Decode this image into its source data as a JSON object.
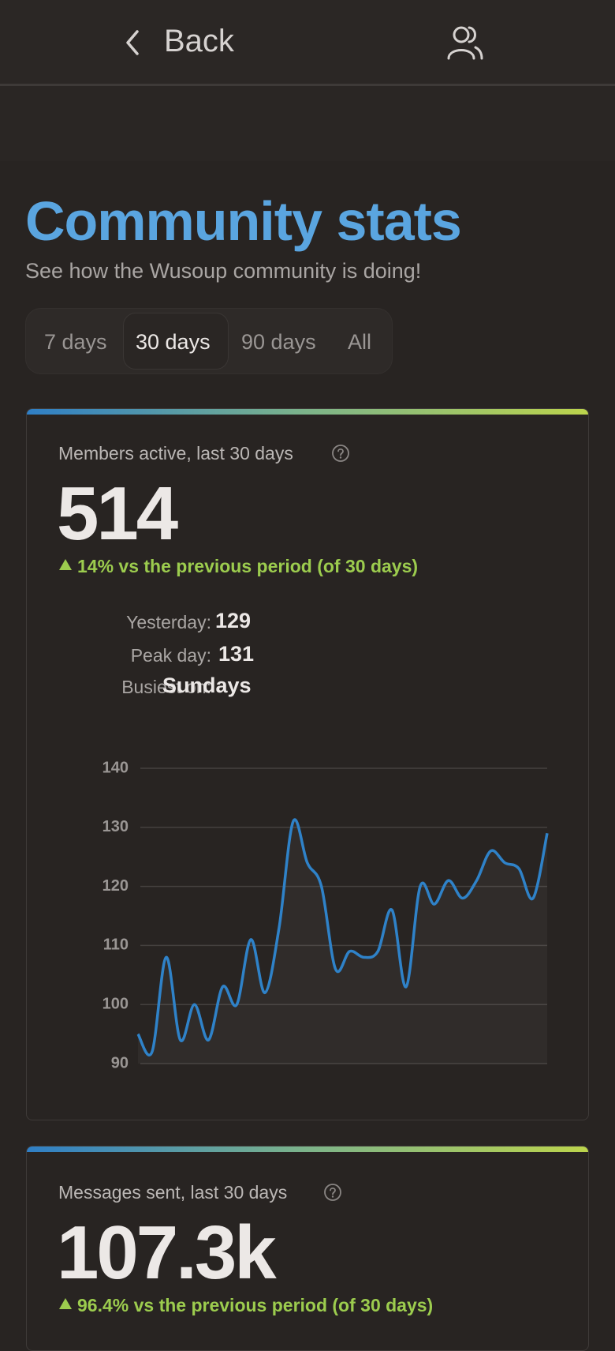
{
  "header": {
    "back": "Back"
  },
  "title": "Community stats",
  "subtitle": "See how the Wusoup community is doing!",
  "tabs": [
    "7 days",
    "30 days",
    "90 days",
    "All"
  ],
  "cards": [
    {
      "label": "Members active, last 30 days",
      "value": "514",
      "change": "14% vs the previous period (of 30 days)",
      "stats": [
        {
          "label": "Yesterday:",
          "value": "129"
        },
        {
          "label": "Peak day:",
          "value": "131"
        },
        {
          "label": "Busiest on:",
          "value": "Sundays"
        }
      ]
    },
    {
      "label": "Messages sent, last 30 days",
      "value": "107.3k",
      "change": "96.4% vs the previous period (of 30 days)"
    }
  ],
  "chart_data": {
    "type": "line",
    "color": "#2f82c8",
    "values": [
      95,
      92,
      108,
      94,
      100,
      94,
      103,
      100,
      111,
      102,
      113,
      131,
      124,
      120,
      106,
      109,
      108,
      109,
      116,
      103,
      120,
      117,
      121,
      118,
      121,
      126,
      124,
      123,
      118,
      129
    ],
    "ylim": [
      90,
      140
    ],
    "yticks": [
      90,
      100,
      110,
      120,
      130,
      140
    ],
    "grid": true
  }
}
